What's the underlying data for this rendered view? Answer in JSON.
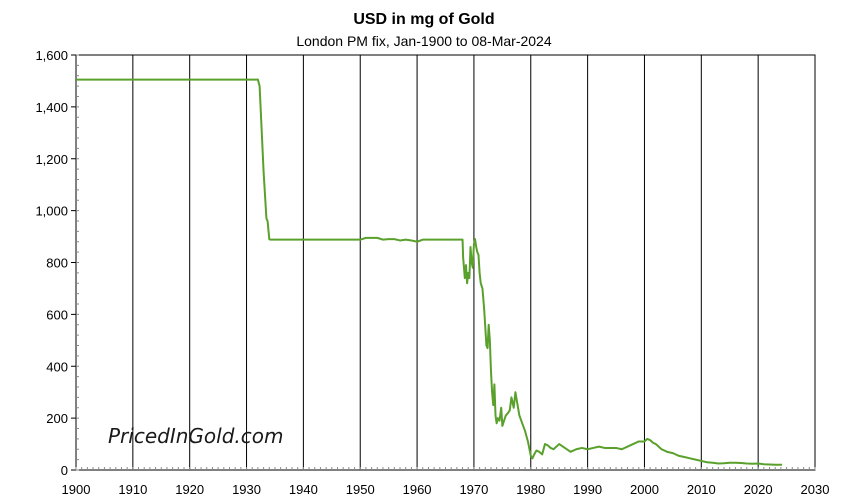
{
  "chart_data": {
    "type": "line",
    "title": "USD in mg of Gold",
    "subtitle": "London PM fix, Jan-1900 to 08-Mar-2024",
    "xlabel": "",
    "ylabel": "",
    "xlim": [
      1900,
      2030
    ],
    "ylim": [
      0,
      1600
    ],
    "x_ticks": [
      "1900",
      "1910",
      "1920",
      "1930",
      "1940",
      "1950",
      "1960",
      "1970",
      "1980",
      "1990",
      "2000",
      "2010",
      "2020",
      "2030"
    ],
    "y_ticks": [
      "0",
      "200",
      "400",
      "600",
      "800",
      "1,000",
      "1,200",
      "1,400",
      "1,600"
    ],
    "grid": "vertical",
    "line_color": "#5aa02c",
    "watermark": "PricedInGold.com",
    "series": [
      {
        "x": [
          1900,
          1932.0,
          1932.3,
          1933.0,
          1933.5,
          1933.7,
          1934.0,
          1934.2,
          1940,
          1945,
          1950,
          1951,
          1953,
          1954,
          1955,
          1956,
          1957,
          1958,
          1959,
          1960,
          1961,
          1962,
          1964,
          1966,
          1967,
          1968.0,
          1968.1,
          1968.4,
          1968.6,
          1968.8,
          1969.0,
          1969.2,
          1969.4,
          1969.6,
          1969.8,
          1970.0,
          1970.2,
          1970.4,
          1970.6,
          1970.8,
          1971.0,
          1971.2,
          1971.5,
          1971.8,
          1972.0,
          1972.2,
          1972.4,
          1972.6,
          1972.8,
          1973.0,
          1973.2,
          1973.4,
          1973.6,
          1973.8,
          1974.0,
          1974.2,
          1974.5,
          1974.8,
          1975.0,
          1975.3,
          1975.6,
          1976.0,
          1976.3,
          1976.6,
          1977.0,
          1977.3,
          1977.6,
          1978.0,
          1978.5,
          1979.0,
          1979.5,
          1980.0,
          1980.3,
          1980.6,
          1981.0,
          1981.5,
          1982.0,
          1982.5,
          1983.0,
          1983.5,
          1984.0,
          1985.0,
          1986.0,
          1987.0,
          1988.0,
          1989.0,
          1990.0,
          1991.0,
          1992.0,
          1993.0,
          1994.0,
          1995.0,
          1996.0,
          1997.0,
          1998.0,
          1999.0,
          2000.0,
          2000.5,
          2001.0,
          2001.5,
          2002.0,
          2002.5,
          2003.0,
          2004.0,
          2005.0,
          2006.0,
          2007.0,
          2008.0,
          2009.0,
          2010.0,
          2011.0,
          2012.0,
          2013.0,
          2014.0,
          2015.0,
          2016.0,
          2017.0,
          2018.0,
          2019.0,
          2020.0,
          2021.0,
          2022.0,
          2023.0,
          2024.2
        ],
        "y": [
          1505,
          1505,
          1480,
          1150,
          970,
          960,
          890,
          888,
          888,
          888,
          888,
          895,
          895,
          888,
          890,
          890,
          885,
          888,
          885,
          880,
          888,
          888,
          888,
          888,
          888,
          888,
          820,
          740,
          790,
          720,
          760,
          740,
          860,
          800,
          780,
          870,
          890,
          860,
          840,
          830,
          760,
          720,
          700,
          620,
          550,
          480,
          470,
          560,
          500,
          380,
          300,
          250,
          330,
          210,
          180,
          200,
          190,
          240,
          170,
          190,
          210,
          220,
          230,
          280,
          240,
          300,
          260,
          210,
          180,
          150,
          110,
          55,
          45,
          60,
          75,
          70,
          60,
          100,
          95,
          85,
          80,
          100,
          85,
          70,
          80,
          85,
          80,
          85,
          90,
          85,
          85,
          85,
          80,
          90,
          100,
          110,
          110,
          120,
          115,
          105,
          100,
          90,
          80,
          70,
          65,
          55,
          50,
          45,
          40,
          35,
          30,
          28,
          25,
          26,
          28,
          28,
          27,
          25,
          24,
          25,
          22,
          21,
          20,
          20
        ]
      }
    ]
  }
}
